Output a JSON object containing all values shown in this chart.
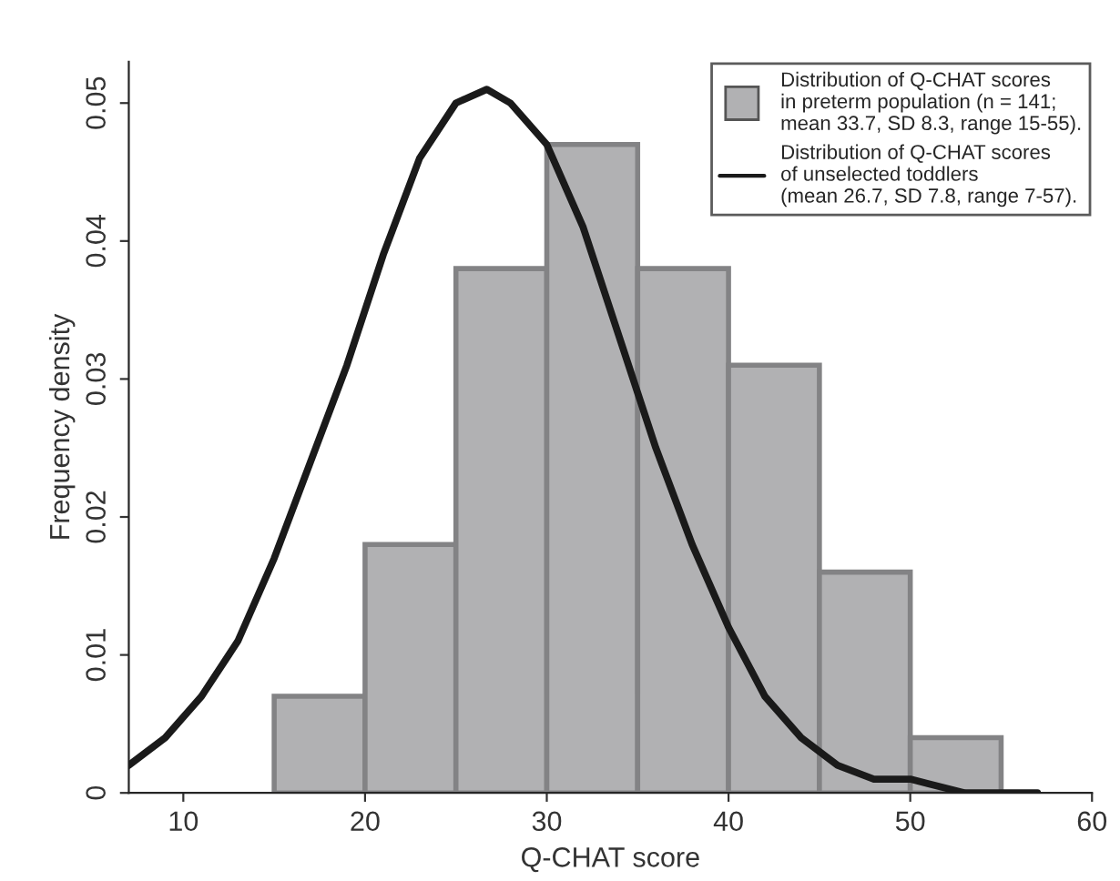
{
  "chart_data": {
    "type": "histogram",
    "xlabel": "Q-CHAT score",
    "ylabel": "Frequency density",
    "series": [
      {
        "type": "histogram",
        "name": "Distribution of Q-CHAT scores\nin preterm population (n = 141;\nmean 33.7, SD 8.3, range 15-55).",
        "color": "#b1b1b3",
        "bins": [
          15,
          20,
          25,
          30,
          35,
          40,
          45,
          50,
          55
        ],
        "values": [
          0.007,
          0.018,
          0.038,
          0.047,
          0.038,
          0.031,
          0.016,
          0.004
        ]
      },
      {
        "type": "line",
        "name": "Distribution of Q-CHAT scores\nof unselected toddlers\n(mean 26.7, SD 7.8, range 7-57).",
        "color": "#1a1a1a",
        "x": [
          7,
          9,
          11,
          13,
          15,
          17,
          19,
          21,
          23,
          25,
          26.7,
          28,
          30,
          32,
          34,
          36,
          38,
          40,
          42,
          44,
          46,
          48,
          50,
          53,
          57
        ],
        "values": [
          0.002,
          0.004,
          0.007,
          0.011,
          0.017,
          0.024,
          0.031,
          0.039,
          0.046,
          0.05,
          0.051,
          0.05,
          0.047,
          0.041,
          0.033,
          0.025,
          0.018,
          0.012,
          0.007,
          0.004,
          0.002,
          0.001,
          0.001,
          0.0,
          0.0
        ]
      }
    ],
    "xlim": [
      7,
      60
    ],
    "xticks": [
      10,
      20,
      30,
      40,
      50,
      60
    ],
    "ylim": [
      0,
      0.053
    ],
    "yticks": [
      0,
      0.01,
      0.02,
      0.03,
      0.04,
      0.05
    ],
    "legend": "top right",
    "grid": false,
    "line_style": "solid",
    "marker": "none"
  }
}
